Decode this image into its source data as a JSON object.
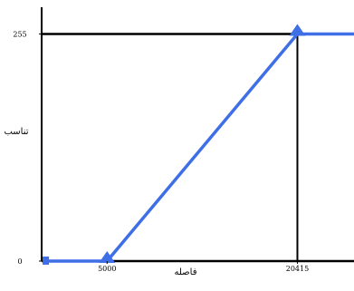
{
  "chart_data": {
    "type": "line",
    "title": "",
    "xlabel": "فاصله",
    "ylabel": "تناسب",
    "x_ticks": [
      {
        "value": 5000,
        "label": "5000"
      },
      {
        "value": 20415,
        "label": "20415"
      }
    ],
    "y_ticks": [
      {
        "value": 0,
        "label": "0"
      },
      {
        "value": 255,
        "label": "255"
      }
    ],
    "xlim": [
      -300,
      25000
    ],
    "ylim": [
      0,
      285
    ],
    "grid": false,
    "series": [
      {
        "x": [
          0,
          5000,
          20415,
          25000
        ],
        "y": [
          0,
          0,
          255,
          255
        ],
        "markers": [
          {
            "x": 0,
            "y": 0,
            "shape": "square"
          },
          {
            "x": 5000,
            "y": 0,
            "shape": "triangle"
          },
          {
            "x": 20415,
            "y": 255,
            "shape": "triangle"
          }
        ]
      }
    ],
    "colors": {
      "series": "#3f6fe6",
      "axis": "#000000",
      "guide": "#000000",
      "background": "#ffffff"
    }
  }
}
